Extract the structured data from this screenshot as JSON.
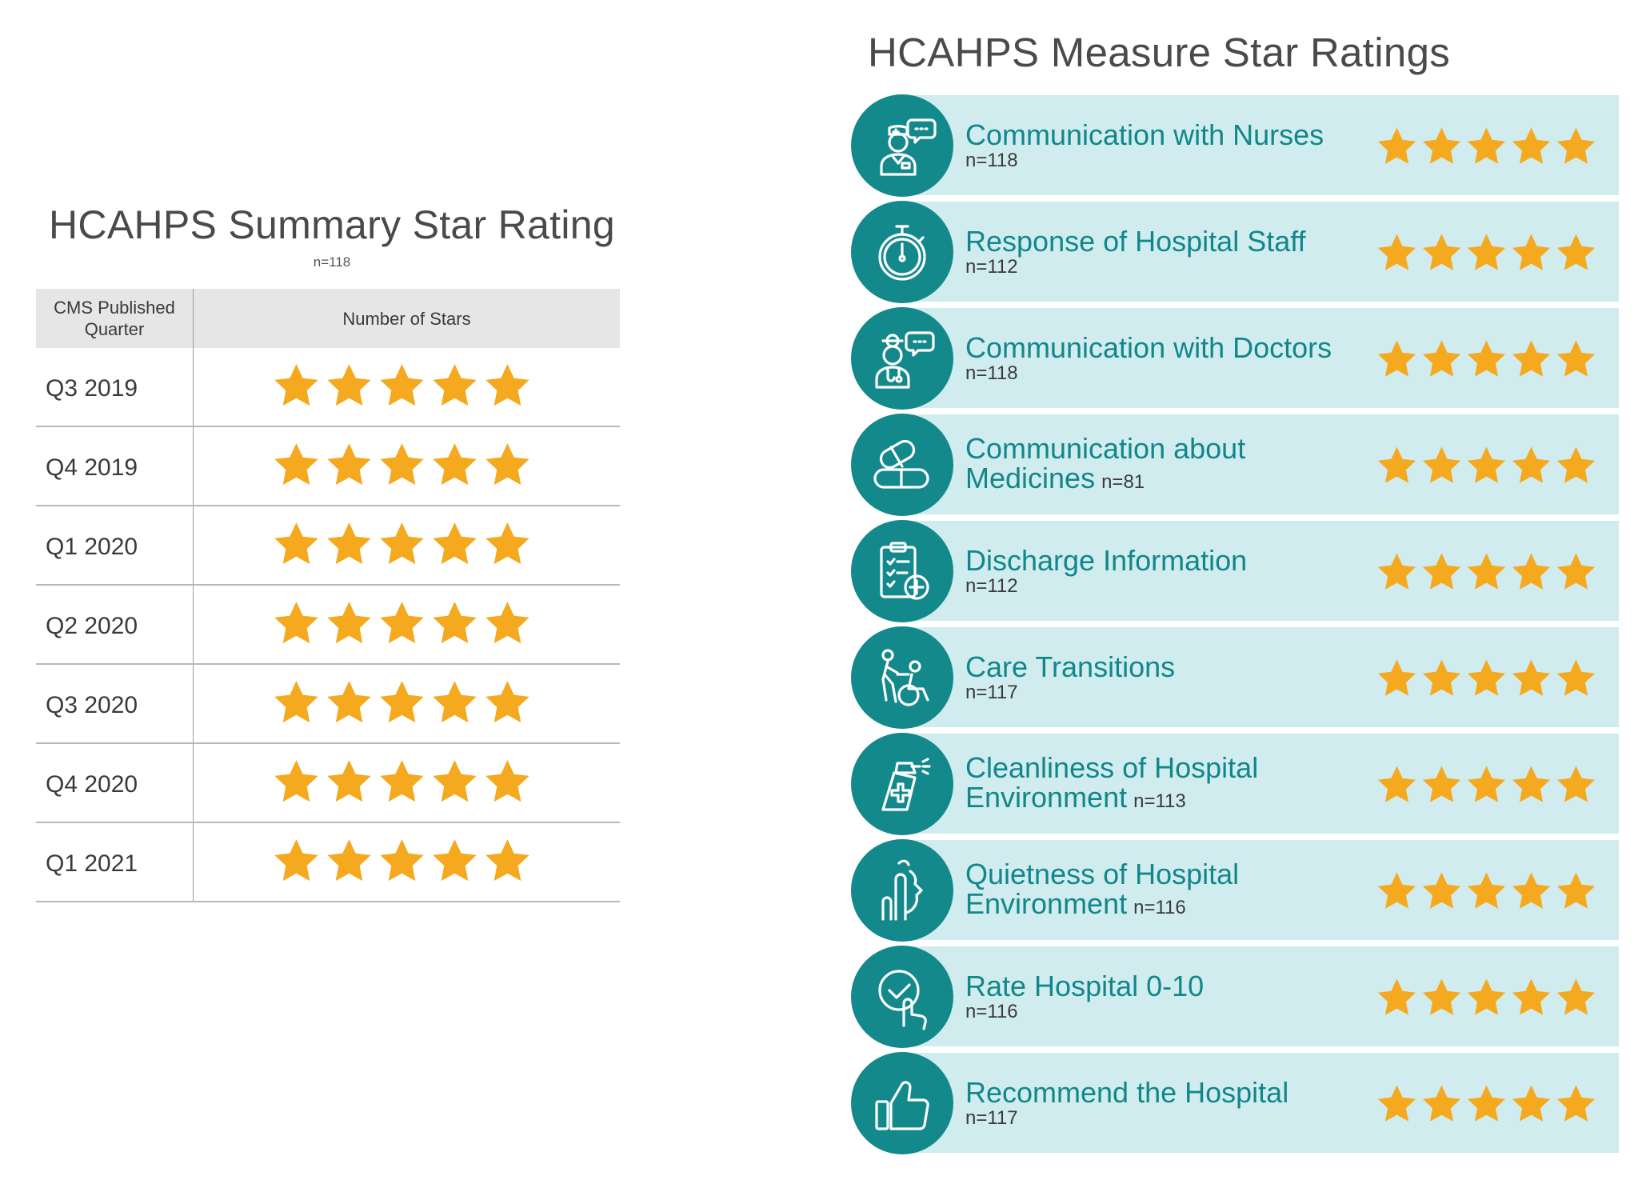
{
  "colors": {
    "star": "#F5A91F",
    "teal": "#13898C",
    "band": "#D1ECEE",
    "header_gray": "#E6E6E6"
  },
  "summary": {
    "title": "HCAHPS Summary Star Rating",
    "n": "n=118",
    "headers": {
      "quarter": "CMS Published Quarter",
      "stars": "Number of Stars"
    },
    "rows": [
      {
        "quarter": "Q3 2019",
        "stars": 5
      },
      {
        "quarter": "Q4 2019",
        "stars": 5
      },
      {
        "quarter": "Q1 2020",
        "stars": 5
      },
      {
        "quarter": "Q2 2020",
        "stars": 5
      },
      {
        "quarter": "Q3 2020",
        "stars": 5
      },
      {
        "quarter": "Q4 2020",
        "stars": 5
      },
      {
        "quarter": "Q1 2021",
        "stars": 5
      }
    ]
  },
  "measures": {
    "title": "HCAHPS Measure Star Ratings",
    "items": [
      {
        "lines": [
          "Communication with Nurses"
        ],
        "n": "n=118",
        "stars": 5,
        "icon": "nurse-icon"
      },
      {
        "lines": [
          "Response of Hospital Staff"
        ],
        "n": "n=112",
        "stars": 5,
        "icon": "stopwatch-icon"
      },
      {
        "lines": [
          "Communication with Doctors"
        ],
        "n": "n=118",
        "stars": 5,
        "icon": "doctor-icon"
      },
      {
        "lines": [
          "Communication about",
          "Medicines"
        ],
        "n": "n=81",
        "stars": 5,
        "icon": "pills-icon"
      },
      {
        "lines": [
          "Discharge Information"
        ],
        "n": "n=112",
        "stars": 5,
        "icon": "clipboard-icon"
      },
      {
        "lines": [
          "Care Transitions"
        ],
        "n": "n=117",
        "stars": 5,
        "icon": "wheelchair-icon"
      },
      {
        "lines": [
          "Cleanliness of Hospital",
          "Environment"
        ],
        "n": "n=113",
        "stars": 5,
        "icon": "spray-bottle-icon"
      },
      {
        "lines": [
          "Quietness of Hospital",
          "Environment"
        ],
        "n": "n=116",
        "stars": 5,
        "icon": "quiet-icon"
      },
      {
        "lines": [
          "Rate Hospital 0-10"
        ],
        "n": "n=116",
        "stars": 5,
        "icon": "hand-check-icon"
      },
      {
        "lines": [
          "Recommend the Hospital"
        ],
        "n": "n=117",
        "stars": 5,
        "icon": "thumbs-up-icon"
      }
    ]
  }
}
